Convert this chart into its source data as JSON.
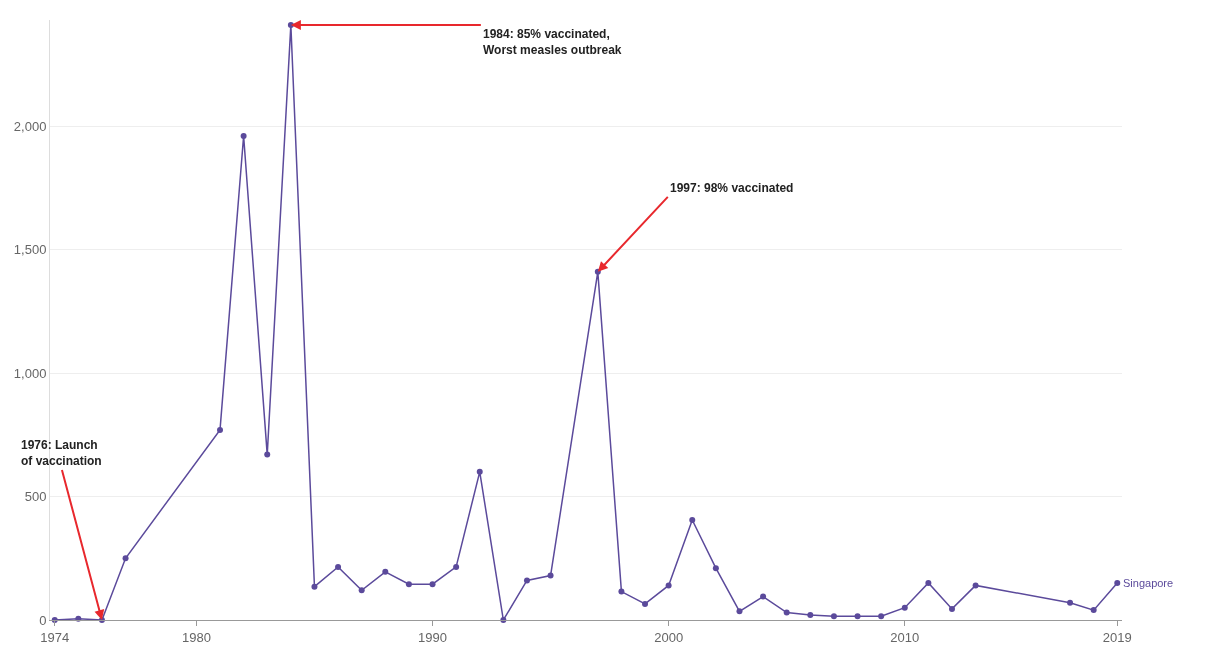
{
  "chart_data": {
    "type": "line",
    "x": [
      1974,
      1975,
      1976,
      1977,
      1981,
      1982,
      1983,
      1984,
      1985,
      1986,
      1987,
      1988,
      1989,
      1990,
      1991,
      1992,
      1993,
      1994,
      1995,
      1997,
      1998,
      1999,
      2000,
      2001,
      2002,
      2003,
      2004,
      2005,
      2006,
      2007,
      2008,
      2009,
      2010,
      2011,
      2012,
      2013,
      2017,
      2018,
      2019
    ],
    "series": [
      {
        "name": "Singapore",
        "color": "#5b4a9b",
        "values": [
          0,
          5,
          0,
          250,
          770,
          1960,
          670,
          2410,
          135,
          215,
          120,
          195,
          145,
          145,
          215,
          600,
          0,
          160,
          180,
          1410,
          115,
          65,
          140,
          405,
          210,
          35,
          95,
          30,
          20,
          15,
          15,
          15,
          50,
          150,
          45,
          140,
          70,
          40,
          150
        ]
      }
    ],
    "xlim": [
      1973.8,
      2019.2
    ],
    "xticks": [
      1974,
      1980,
      1990,
      2000,
      2010,
      2019
    ],
    "ylim": [
      0,
      2430
    ],
    "yticks": [
      0,
      500,
      {
        "value": 1000,
        "label": "1,000"
      },
      {
        "value": 1500,
        "label": "1,500"
      },
      {
        "value": 2000,
        "label": "2,000"
      }
    ],
    "grid": "y",
    "marker": "circle",
    "line_style": "solid",
    "legend": false,
    "annotations": [
      {
        "text": "1984: 85% vaccinated,\nWorst measles outbreak",
        "x": 1984,
        "y": 2410
      },
      {
        "text": "1997: 98% vaccinated",
        "x": 1997,
        "y": 1410
      },
      {
        "text": "1976: Launch\nof vaccination",
        "x": 1976,
        "y": 0
      }
    ]
  }
}
